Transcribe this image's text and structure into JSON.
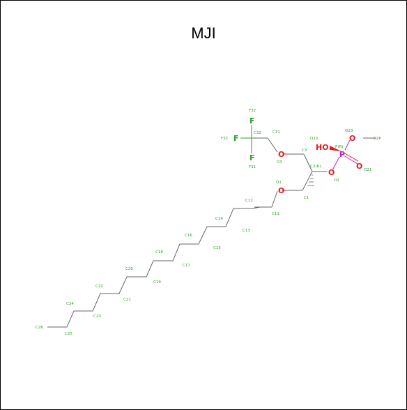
{
  "title": "MJI",
  "colors": {
    "carbon_bond": "#666666",
    "label": "#2ca02c",
    "oxygen": "#e8191c",
    "phosphorus": "#c020c0",
    "fluorine": "#2ca02c"
  },
  "atoms": {
    "big": [
      {
        "id": "F32a",
        "text": "F"
      },
      {
        "id": "F32b",
        "text": "F"
      },
      {
        "id": "F31",
        "text": "F"
      },
      {
        "id": "HO",
        "text": "HO"
      },
      {
        "id": "P",
        "text": "P"
      },
      {
        "id": "O_a",
        "text": "O"
      },
      {
        "id": "O_b",
        "text": "O"
      },
      {
        "id": "O_c",
        "text": "O"
      },
      {
        "id": "O_d",
        "text": "O"
      },
      {
        "id": "O_e",
        "text": "O"
      }
    ],
    "labels": [
      "F32",
      "F32",
      "C32",
      "C31",
      "F31",
      "O3",
      "C3",
      "O22",
      "P(R)",
      "O23",
      "C2P",
      "C2(R)",
      "O2",
      "O21",
      "O1",
      "C1",
      "C12",
      "C11",
      "C14",
      "C13",
      "C16",
      "C15",
      "C18",
      "C17",
      "C20",
      "C19",
      "C22",
      "C21",
      "C24",
      "C23",
      "C26",
      "C25"
    ]
  }
}
